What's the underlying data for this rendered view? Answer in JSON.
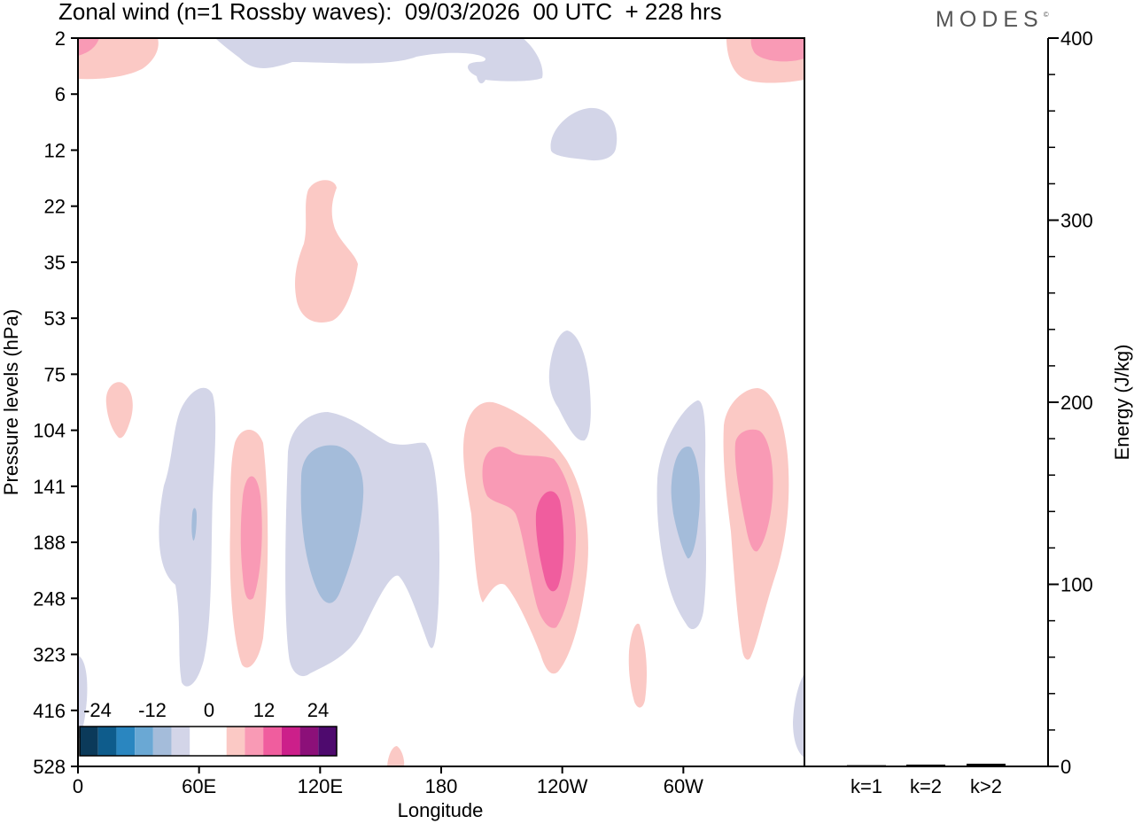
{
  "header": {
    "title": "Zonal wind (n=1 Rossby waves):  09/03/2026  00 UTC  + 228 hrs",
    "logo": "MODES",
    "logo_mark": "©"
  },
  "chart_data": [
    {
      "type": "heatmap",
      "title": "Zonal wind (n=1 Rossby waves):  09/03/2026  00 UTC  + 228 hrs",
      "xlabel": "Longitude",
      "ylabel": "Pressure levels (hPa)",
      "x_tick_labels": [
        "0",
        "60E",
        "120E",
        "180",
        "120W",
        "60W"
      ],
      "y_tick_labels": [
        "2",
        "6",
        "12",
        "22",
        "35",
        "53",
        "75",
        "104",
        "141",
        "188",
        "248",
        "323",
        "416",
        "528"
      ],
      "colorbar": {
        "tick_labels": [
          "-24",
          "-12",
          "0",
          "12",
          "24"
        ],
        "colors": [
          "#0b3a5a",
          "#0e5c8c",
          "#2a86c0",
          "#6aa8d4",
          "#a4bcda",
          "#d3d5e8",
          "#ffffff",
          "#ffffff",
          "#fbc9c5",
          "#f99ab5",
          "#f05d9e",
          "#cc1f8a",
          "#8c1079",
          "#4e0a6e"
        ]
      },
      "features": [
        {
          "name": "negative lobe 60E",
          "lon": 55,
          "level": "188",
          "value_range": "-6 to 0"
        },
        {
          "name": "positive lobe 85E",
          "lon": 85,
          "level": "188",
          "value_range": "6 to 12"
        },
        {
          "name": "negative core 120E",
          "lon": 122,
          "level": "141-188",
          "value_range": "-12 to -6"
        },
        {
          "name": "positive core 115W",
          "lon": 245,
          "level": "188",
          "value_range": "12 to 18"
        },
        {
          "name": "negative core 60W",
          "lon": 300,
          "level": "141",
          "value_range": "-12 to -6"
        },
        {
          "name": "positive core 30W",
          "lon": 330,
          "level": "141",
          "value_range": "6 to 12"
        },
        {
          "name": "stratospheric positive 120E",
          "lon": 120,
          "level": "35",
          "value_range": "0 to 6"
        }
      ]
    },
    {
      "type": "bar",
      "ylabel": "Energy (J/kg)",
      "categories": [
        "k=1",
        "k=2",
        "k>2"
      ],
      "values": [
        0.2,
        0.5,
        1.0
      ],
      "ylim": [
        0,
        400
      ],
      "y_tick_labels": [
        "0",
        "100",
        "200",
        "300",
        "400"
      ]
    }
  ]
}
